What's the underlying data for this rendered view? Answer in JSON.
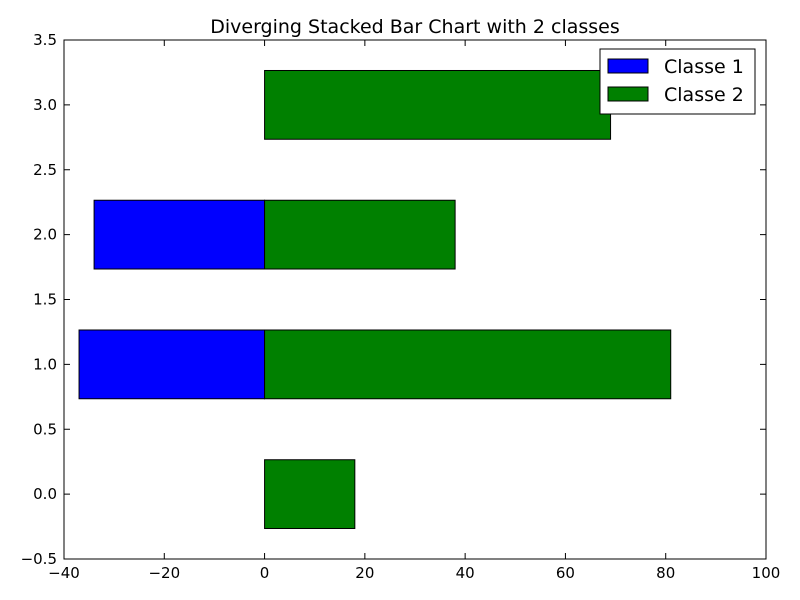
{
  "chart_data": {
    "type": "bar",
    "orientation": "horizontal",
    "stacking": "diverging",
    "title": "Diverging Stacked Bar Chart with 2 classes",
    "xlabel": "",
    "ylabel": "",
    "xlim": [
      -40,
      100
    ],
    "ylim": [
      -0.5,
      3.5
    ],
    "grid": false,
    "legend_position": "top-right",
    "categories": [
      0,
      1,
      2,
      3
    ],
    "bar_height": 0.53,
    "series": [
      {
        "name": "Classe 1",
        "color": "#0000ff",
        "values": [
          0,
          -37,
          -34,
          0
        ]
      },
      {
        "name": "Classe 2",
        "color": "#008000",
        "values": [
          18,
          81,
          38,
          69
        ]
      }
    ],
    "x_ticks": [
      {
        "value": -40,
        "label": "−40"
      },
      {
        "value": -20,
        "label": "−20"
      },
      {
        "value": 0,
        "label": "0"
      },
      {
        "value": 20,
        "label": "20"
      },
      {
        "value": 40,
        "label": "40"
      },
      {
        "value": 60,
        "label": "60"
      },
      {
        "value": 80,
        "label": "80"
      },
      {
        "value": 100,
        "label": "100"
      }
    ],
    "y_ticks": [
      {
        "value": -0.5,
        "label": "−0.5"
      },
      {
        "value": 0,
        "label": "0.0"
      },
      {
        "value": 0.5,
        "label": "0.5"
      },
      {
        "value": 1,
        "label": "1.0"
      },
      {
        "value": 1.5,
        "label": "1.5"
      },
      {
        "value": 2,
        "label": "2.0"
      },
      {
        "value": 2.5,
        "label": "2.5"
      },
      {
        "value": 3,
        "label": "3.0"
      },
      {
        "value": 3.5,
        "label": "3.5"
      }
    ]
  }
}
